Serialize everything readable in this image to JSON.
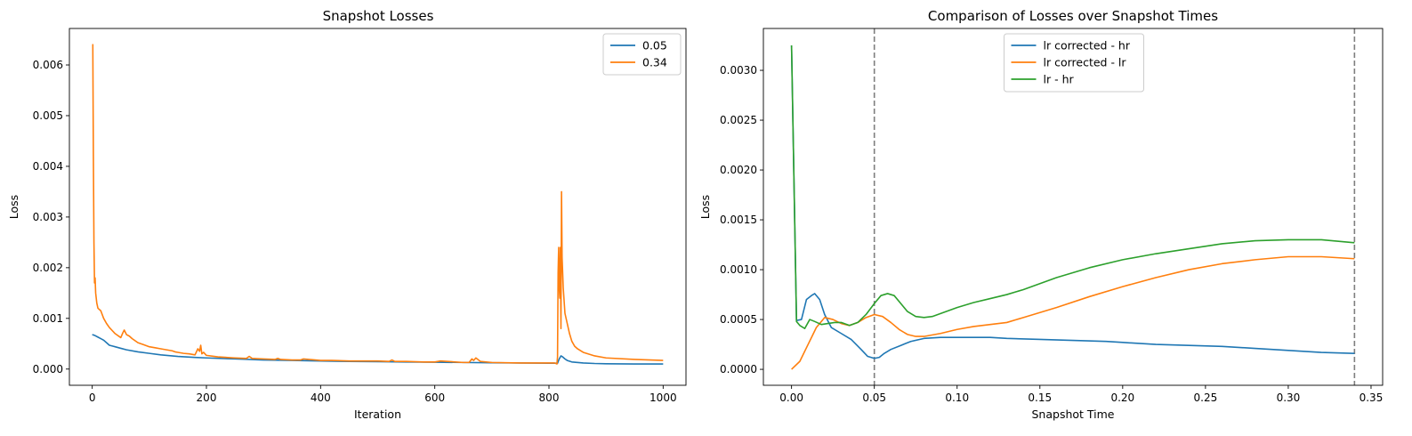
{
  "chart_data": [
    {
      "type": "line",
      "title": "Snapshot Losses",
      "xlabel": "Iteration",
      "ylabel": "Loss",
      "xlim": [
        -40,
        1040
      ],
      "ylim": [
        -0.00032,
        0.00672
      ],
      "xticks": [
        0,
        200,
        400,
        600,
        800,
        1000
      ],
      "xtick_labels": [
        "0",
        "200",
        "400",
        "600",
        "800",
        "1000"
      ],
      "yticks": [
        0.0,
        0.001,
        0.002,
        0.003,
        0.004,
        0.005,
        0.006
      ],
      "ytick_labels": [
        "0.000",
        "0.001",
        "0.002",
        "0.003",
        "0.004",
        "0.005",
        "0.006"
      ],
      "legend_position": "upper right",
      "grid": false,
      "series": [
        {
          "name": "0.05",
          "color": "#1f77b4",
          "x": [
            0,
            5,
            10,
            15,
            20,
            25,
            30,
            40,
            50,
            60,
            80,
            100,
            120,
            150,
            180,
            200,
            250,
            300,
            350,
            400,
            450,
            500,
            550,
            600,
            650,
            700,
            750,
            800,
            815,
            818,
            821,
            824,
            828,
            832,
            840,
            860,
            880,
            900,
            950,
            1000
          ],
          "y": [
            0.00068,
            0.00066,
            0.00063,
            0.0006,
            0.00057,
            0.00052,
            0.00047,
            0.00044,
            0.00041,
            0.00038,
            0.00034,
            0.00031,
            0.00028,
            0.00025,
            0.00023,
            0.00022,
            0.0002,
            0.00018,
            0.00017,
            0.00016,
            0.00015,
            0.000145,
            0.00014,
            0.000135,
            0.00013,
            0.000125,
            0.00012,
            0.000115,
            0.000115,
            0.0002,
            0.00026,
            0.00024,
            0.0002,
            0.00017,
            0.00014,
            0.00012,
            0.00011,
            0.000105,
            0.0001,
            0.0001
          ]
        },
        {
          "name": "0.34",
          "color": "#ff7f0e",
          "x": [
            0,
            1,
            2,
            3,
            4,
            5,
            6,
            8,
            10,
            15,
            20,
            25,
            30,
            40,
            50,
            53,
            56,
            60,
            65,
            70,
            80,
            90,
            100,
            110,
            120,
            130,
            140,
            145,
            150,
            160,
            170,
            180,
            185,
            188,
            190,
            192,
            195,
            200,
            220,
            250,
            270,
            275,
            280,
            300,
            320,
            325,
            330,
            350,
            365,
            370,
            400,
            420,
            450,
            500,
            520,
            525,
            530,
            550,
            580,
            600,
            610,
            650,
            660,
            665,
            668,
            672,
            680,
            700,
            750,
            800,
            810,
            814,
            815,
            816,
            817,
            818,
            819,
            820,
            821,
            822,
            823,
            825,
            828,
            832,
            836,
            840,
            845,
            850,
            860,
            880,
            900,
            950,
            1000
          ],
          "y": [
            0.0064,
            0.0064,
            0.0042,
            0.0025,
            0.0017,
            0.0018,
            0.0015,
            0.0013,
            0.0012,
            0.00115,
            0.001,
            0.0009,
            0.00082,
            0.0007,
            0.00062,
            0.0007,
            0.00077,
            0.00068,
            0.00065,
            0.0006,
            0.00052,
            0.00048,
            0.00044,
            0.00042,
            0.0004,
            0.00038,
            0.00036,
            0.00034,
            0.00033,
            0.00031,
            0.0003,
            0.00028,
            0.0004,
            0.00035,
            0.00047,
            0.0003,
            0.00033,
            0.00027,
            0.00024,
            0.00022,
            0.00021,
            0.00025,
            0.00021,
            0.0002,
            0.00019,
            0.00021,
            0.00019,
            0.00018,
            0.00018,
            0.0002,
            0.00017,
            0.00017,
            0.00016,
            0.00016,
            0.00015,
            0.00018,
            0.00015,
            0.00015,
            0.00014,
            0.00014,
            0.00016,
            0.00013,
            0.00013,
            0.0002,
            0.00017,
            0.00022,
            0.00015,
            0.00013,
            0.00012,
            0.00012,
            0.00012,
            0.0001,
            0.00024,
            0.0019,
            0.0024,
            0.0016,
            0.0014,
            0.0024,
            0.0008,
            0.0035,
            0.0022,
            0.0016,
            0.0011,
            0.0009,
            0.0007,
            0.00055,
            0.00045,
            0.0004,
            0.00033,
            0.00026,
            0.00022,
            0.00019,
            0.00017
          ]
        }
      ]
    },
    {
      "type": "line",
      "title": "Comparison of Losses over Snapshot Times",
      "xlabel": "Snapshot Time",
      "ylabel": "Loss",
      "xlim": [
        -0.017,
        0.357
      ],
      "ylim": [
        -0.00016,
        0.00342
      ],
      "xticks": [
        0.0,
        0.05,
        0.1,
        0.15,
        0.2,
        0.25,
        0.3,
        0.35
      ],
      "xtick_labels": [
        "0.00",
        "0.05",
        "0.10",
        "0.15",
        "0.20",
        "0.25",
        "0.30",
        "0.35"
      ],
      "yticks": [
        0.0,
        0.0005,
        0.001,
        0.0015,
        0.002,
        0.0025,
        0.003
      ],
      "ytick_labels": [
        "0.0000",
        "0.0005",
        "0.0010",
        "0.0015",
        "0.0020",
        "0.0025",
        "0.0030"
      ],
      "vlines": [
        0.05,
        0.34
      ],
      "vline_color": "#7f7f7f",
      "legend_position": "upper center",
      "grid": false,
      "series": [
        {
          "name": "lr corrected - hr",
          "color": "#1f77b4",
          "x": [
            0.0,
            0.003,
            0.006,
            0.009,
            0.012,
            0.014,
            0.017,
            0.02,
            0.024,
            0.03,
            0.036,
            0.042,
            0.046,
            0.05,
            0.053,
            0.056,
            0.06,
            0.066,
            0.072,
            0.08,
            0.09,
            0.1,
            0.11,
            0.12,
            0.13,
            0.15,
            0.17,
            0.19,
            0.2,
            0.22,
            0.24,
            0.26,
            0.28,
            0.3,
            0.32,
            0.34
          ],
          "y": [
            0.00325,
            0.00049,
            0.0005,
            0.0007,
            0.00074,
            0.00076,
            0.0007,
            0.00055,
            0.00042,
            0.00036,
            0.0003,
            0.0002,
            0.00013,
            0.00011,
            0.00012,
            0.00016,
            0.0002,
            0.00024,
            0.00028,
            0.00031,
            0.00032,
            0.00032,
            0.00032,
            0.00032,
            0.00031,
            0.0003,
            0.00029,
            0.00028,
            0.00027,
            0.00025,
            0.00024,
            0.00023,
            0.00021,
            0.00019,
            0.00017,
            0.00016
          ]
        },
        {
          "name": "lr corrected - lr",
          "color": "#ff7f0e",
          "x": [
            0.0,
            0.005,
            0.01,
            0.015,
            0.02,
            0.025,
            0.03,
            0.035,
            0.04,
            0.045,
            0.05,
            0.055,
            0.06,
            0.065,
            0.07,
            0.075,
            0.08,
            0.09,
            0.1,
            0.11,
            0.12,
            0.13,
            0.14,
            0.16,
            0.18,
            0.2,
            0.22,
            0.24,
            0.26,
            0.28,
            0.3,
            0.32,
            0.34
          ],
          "y": [
            0.0,
            8e-05,
            0.00025,
            0.00042,
            0.00052,
            0.0005,
            0.00046,
            0.00044,
            0.00047,
            0.00052,
            0.00055,
            0.00053,
            0.00047,
            0.0004,
            0.00035,
            0.00033,
            0.00033,
            0.00036,
            0.0004,
            0.00043,
            0.00045,
            0.00047,
            0.00052,
            0.00062,
            0.00073,
            0.00083,
            0.00092,
            0.001,
            0.00106,
            0.0011,
            0.00113,
            0.00113,
            0.00111
          ]
        },
        {
          "name": "lr - hr",
          "color": "#2ca02c",
          "x": [
            0.0,
            0.003,
            0.005,
            0.008,
            0.011,
            0.014,
            0.018,
            0.022,
            0.026,
            0.03,
            0.035,
            0.04,
            0.045,
            0.05,
            0.054,
            0.058,
            0.062,
            0.066,
            0.07,
            0.075,
            0.08,
            0.085,
            0.09,
            0.1,
            0.11,
            0.12,
            0.13,
            0.14,
            0.16,
            0.18,
            0.2,
            0.22,
            0.24,
            0.26,
            0.28,
            0.3,
            0.32,
            0.34
          ],
          "y": [
            0.00325,
            0.00048,
            0.00044,
            0.00041,
            0.0005,
            0.00048,
            0.00045,
            0.00046,
            0.00047,
            0.00047,
            0.00044,
            0.00047,
            0.00055,
            0.00066,
            0.00074,
            0.00076,
            0.00074,
            0.00066,
            0.00058,
            0.00053,
            0.00052,
            0.00053,
            0.00056,
            0.00062,
            0.00067,
            0.00071,
            0.00075,
            0.0008,
            0.00092,
            0.00102,
            0.0011,
            0.00116,
            0.00121,
            0.00126,
            0.00129,
            0.0013,
            0.0013,
            0.00127
          ]
        }
      ]
    }
  ]
}
